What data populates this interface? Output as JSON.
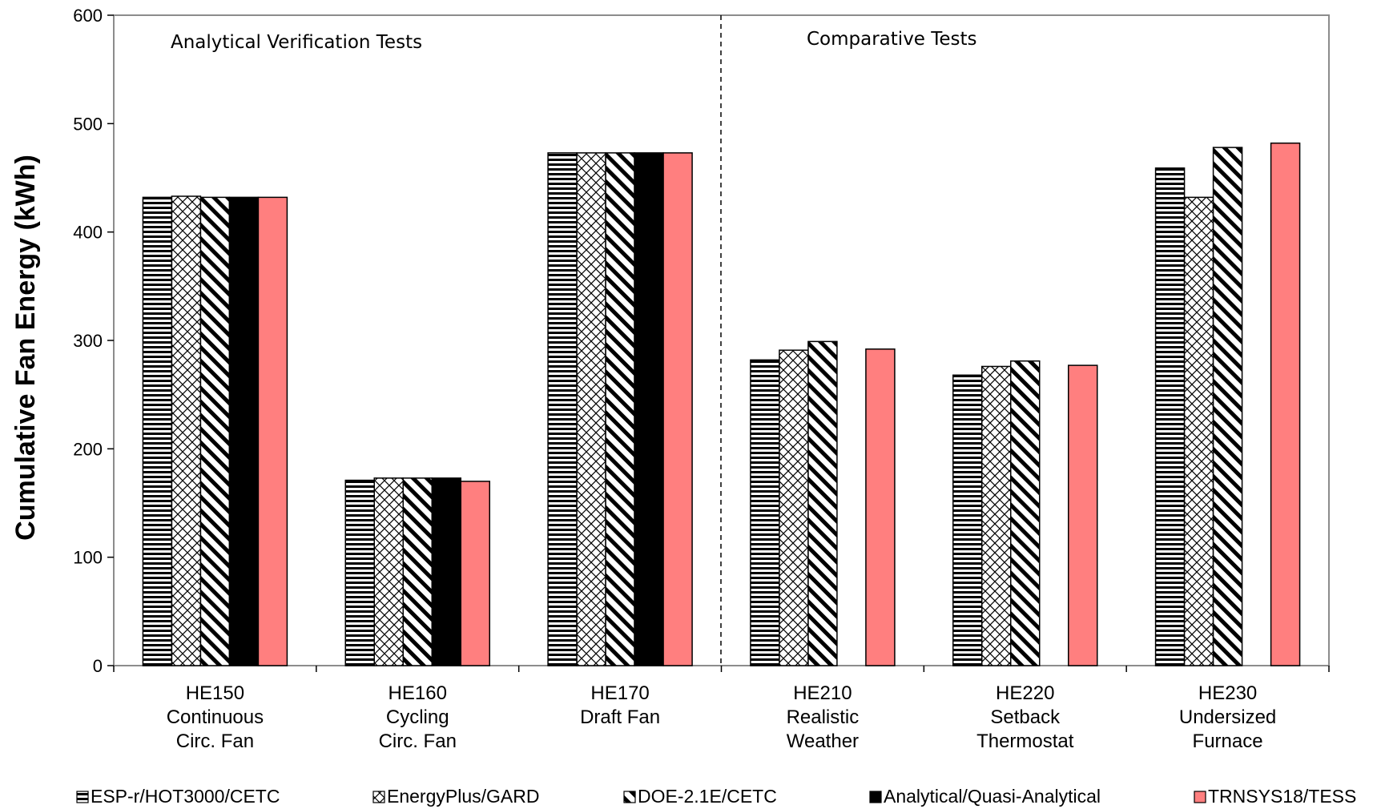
{
  "chart_data": {
    "type": "bar",
    "ylabel": "Cumulative Fan Energy (kWh)",
    "xlabel": "",
    "ylim": [
      0,
      600
    ],
    "yticks": [
      0,
      100,
      200,
      300,
      400,
      500,
      600
    ],
    "grid": false,
    "legend_position": "bottom",
    "categories": [
      [
        "HE150",
        "Continuous",
        "Circ. Fan"
      ],
      [
        "HE160",
        "Cycling",
        "Circ. Fan"
      ],
      [
        "HE170",
        "Draft Fan"
      ],
      [
        "HE210",
        "Realistic",
        "Weather"
      ],
      [
        "HE220",
        "Setback",
        "Thermostat"
      ],
      [
        "HE230",
        "Undersized",
        "Furnace"
      ]
    ],
    "series": [
      {
        "name": "ESP-r/HOT3000/CETC",
        "pattern": "horizontal-lines",
        "color": "#000000",
        "values": [
          432,
          171,
          473,
          282,
          268,
          459
        ]
      },
      {
        "name": "EnergyPlus/GARD",
        "pattern": "crosshatch",
        "color": "#000000",
        "values": [
          433,
          173,
          473,
          291,
          276,
          432
        ]
      },
      {
        "name": "DOE-2.1E/CETC",
        "pattern": "diagonal-lines",
        "color": "#000000",
        "values": [
          432,
          173,
          473,
          299,
          281,
          478
        ]
      },
      {
        "name": "Analytical/Quasi-Analytical",
        "pattern": "solid",
        "color": "#000000",
        "values": [
          432,
          173,
          473,
          null,
          null,
          null
        ]
      },
      {
        "name": "TRNSYS18/TESS",
        "pattern": "solid",
        "color": "#ff7f7f",
        "values": [
          432,
          170,
          473,
          292,
          277,
          482
        ]
      }
    ],
    "annotations": [
      {
        "text": "Analytical Verification Tests",
        "region": "left"
      },
      {
        "text": "Comparative Tests",
        "region": "right"
      }
    ],
    "divider": "dashed vertical line between HE170 and HE210"
  }
}
